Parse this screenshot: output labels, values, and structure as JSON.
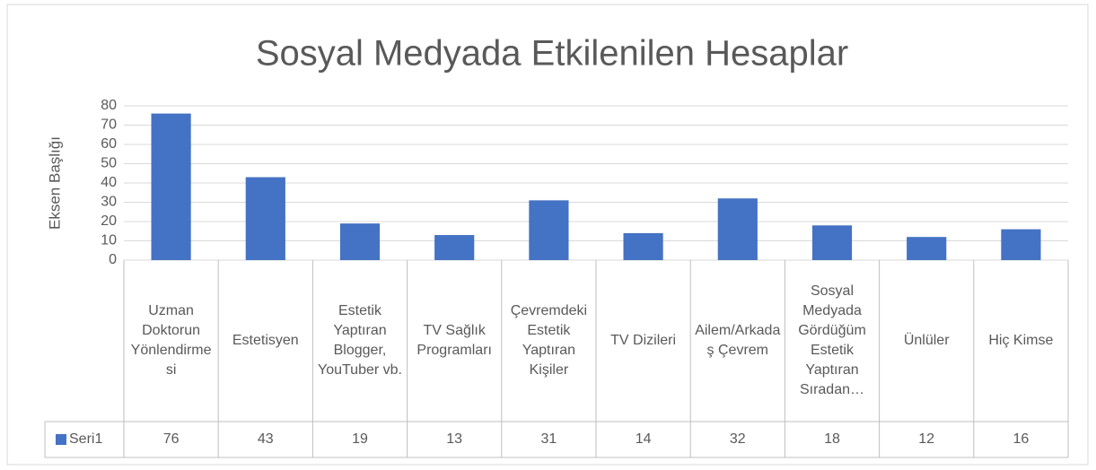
{
  "chart_data": {
    "type": "bar",
    "title": "Sosyal Medyada Etkilenilen Hesaplar",
    "y_label": "Eksen Başlığı",
    "categories": [
      "Uzman Doktorun Yönlendirmesi",
      "Estetisyen",
      "Estetik Yaptıran Blogger, YouTuber vb.",
      "TV Sağlık Programları",
      "Çevremdeki Estetik Yaptıran Kişiler",
      "TV Dizileri",
      "Ailem/Arkadaş Çevrem",
      "Sosyal Medyada Gördüğüm Estetik Yaptıran Sıradan…",
      "Ünlüler",
      "Hiç Kimse"
    ],
    "series": [
      {
        "name": "Seri1",
        "color": "#4472c4",
        "values": [
          76,
          43,
          19,
          13,
          31,
          14,
          32,
          18,
          12,
          16
        ]
      }
    ],
    "ylim": [
      0,
      80
    ],
    "yticks": [
      0,
      10,
      20,
      30,
      40,
      50,
      60,
      70,
      80
    ],
    "grid": true
  }
}
